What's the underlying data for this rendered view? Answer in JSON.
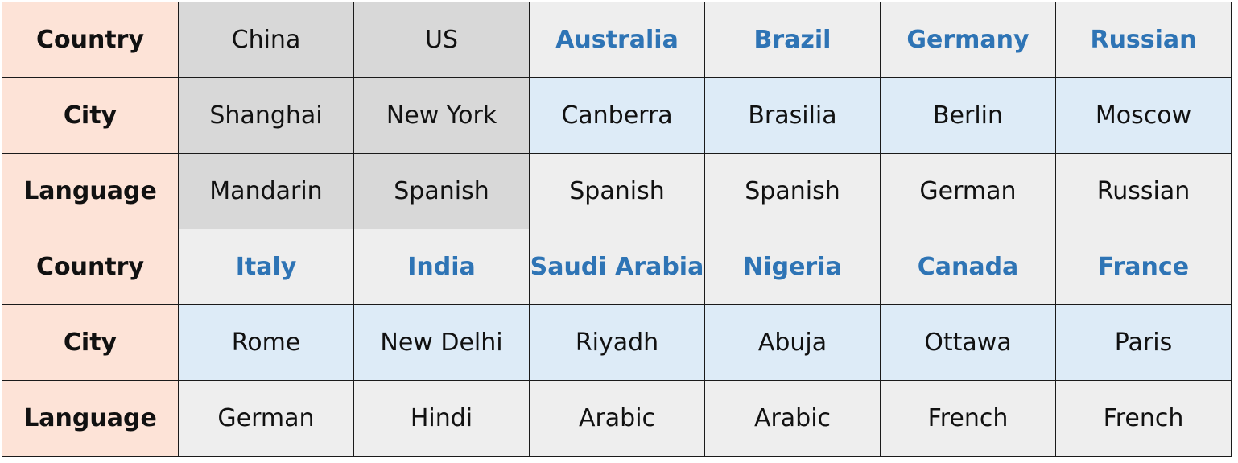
{
  "colors": {
    "label_bg": "#fde3d7",
    "gray_bg": "#d8d8d8",
    "light_bg": "#eeeeee",
    "blue_bg": "#ddebf7",
    "blue_text": "#2e74b5",
    "border": "#1a1a1a"
  },
  "rows": [
    {
      "label": "Country",
      "cells": [
        {
          "text": "China",
          "style": "gray"
        },
        {
          "text": "US",
          "style": "gray"
        },
        {
          "text": "Australia",
          "style": "country"
        },
        {
          "text": "Brazil",
          "style": "country"
        },
        {
          "text": "Germany",
          "style": "country"
        },
        {
          "text": "Russian",
          "style": "country"
        }
      ]
    },
    {
      "label": "City",
      "cells": [
        {
          "text": "Shanghai",
          "style": "gray"
        },
        {
          "text": "New York",
          "style": "gray"
        },
        {
          "text": "Canberra",
          "style": "blue"
        },
        {
          "text": "Brasilia",
          "style": "blue"
        },
        {
          "text": "Berlin",
          "style": "blue"
        },
        {
          "text": "Moscow",
          "style": "blue"
        }
      ]
    },
    {
      "label": "Language",
      "cells": [
        {
          "text": "Mandarin",
          "style": "gray"
        },
        {
          "text": "Spanish",
          "style": "gray"
        },
        {
          "text": "Spanish",
          "style": "light"
        },
        {
          "text": "Spanish",
          "style": "light"
        },
        {
          "text": "German",
          "style": "light"
        },
        {
          "text": "Russian",
          "style": "light"
        }
      ]
    },
    {
      "label": "Country",
      "cells": [
        {
          "text": "Italy",
          "style": "country"
        },
        {
          "text": "India",
          "style": "country"
        },
        {
          "text": "Saudi Arabia",
          "style": "country"
        },
        {
          "text": "Nigeria",
          "style": "country"
        },
        {
          "text": "Canada",
          "style": "country"
        },
        {
          "text": "France",
          "style": "country"
        }
      ]
    },
    {
      "label": "City",
      "cells": [
        {
          "text": "Rome",
          "style": "blue"
        },
        {
          "text": "New Delhi",
          "style": "blue"
        },
        {
          "text": "Riyadh",
          "style": "blue"
        },
        {
          "text": "Abuja",
          "style": "blue"
        },
        {
          "text": "Ottawa",
          "style": "blue"
        },
        {
          "text": "Paris",
          "style": "blue"
        }
      ]
    },
    {
      "label": "Language",
      "cells": [
        {
          "text": "German",
          "style": "light"
        },
        {
          "text": "Hindi",
          "style": "light"
        },
        {
          "text": "Arabic",
          "style": "light"
        },
        {
          "text": "Arabic",
          "style": "light"
        },
        {
          "text": "French",
          "style": "light"
        },
        {
          "text": "French",
          "style": "light"
        }
      ]
    }
  ]
}
